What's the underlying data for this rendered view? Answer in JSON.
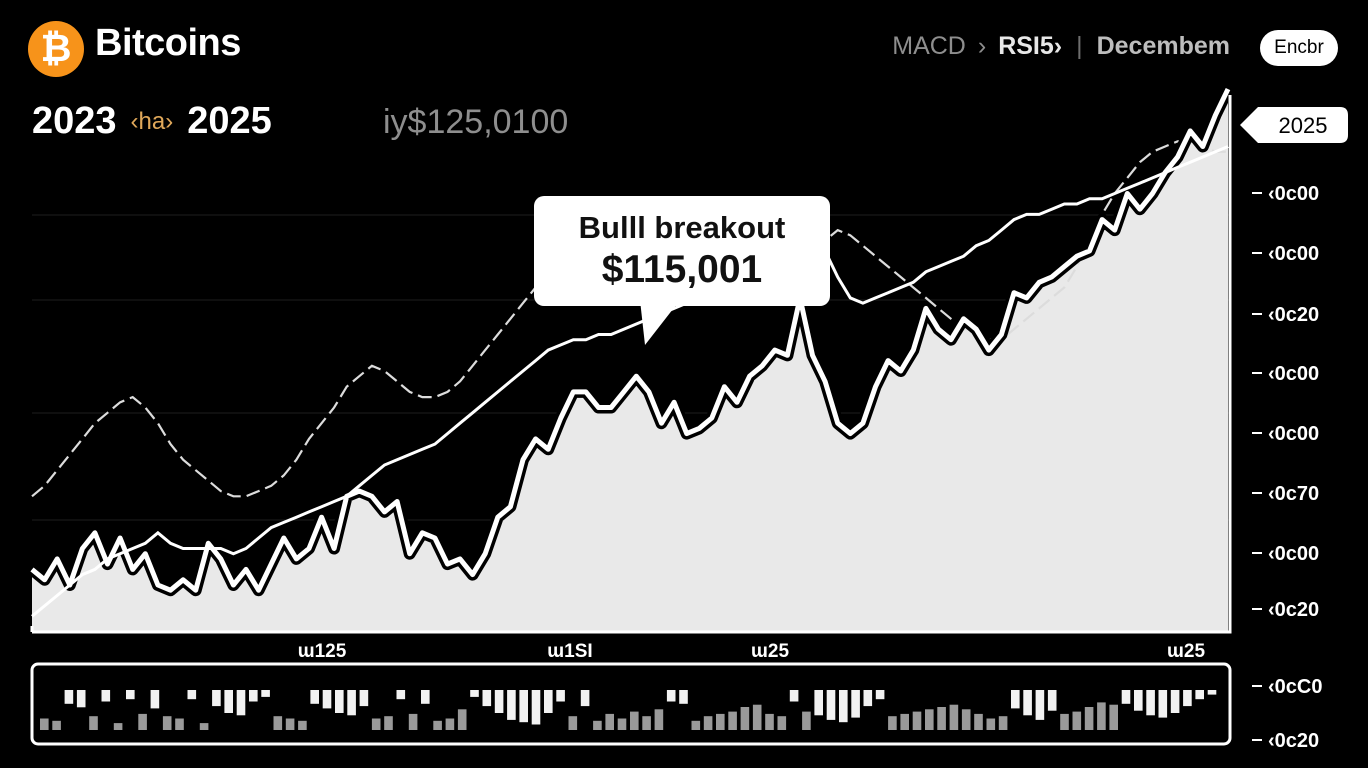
{
  "header": {
    "logo_glyph": "₿",
    "logo_color": "#F7931A",
    "brand": "Bitcoins",
    "nav": {
      "macd": "MACD",
      "chevron": "›",
      "rsi": "RSI5›",
      "divider": "|",
      "month": "Decembem"
    },
    "pill": "Encbr"
  },
  "range": {
    "start": "2023",
    "tag": "‹ha›",
    "end": "2025"
  },
  "price": "iy$125,0100",
  "callout": {
    "line1": "Bulll breakout",
    "line2": "$115,001"
  },
  "chart_data": {
    "type": "area",
    "title": "",
    "ylabel": "",
    "xlabel": "",
    "x_ticks": [
      "ɯ125",
      "ɯ1SI",
      "ɯ25",
      "ɯ25"
    ],
    "y_ticks": [
      "‹0ᴄ00",
      "‹0ᴄ00",
      "‹0ᴄ20",
      "‹0ᴄ00",
      "‹0ᴄ00",
      "‹0ᴄ70",
      "‹0ᴄ00",
      "‹0ᴄ20"
    ],
    "macd_ticks": [
      "‹0ᴄC0",
      "‹0ᴄ20"
    ],
    "end_tag": "2025",
    "ylim": [
      0,
      100
    ],
    "grid": true,
    "series": [
      {
        "values": [
          12,
          10,
          14,
          9,
          16,
          19,
          13,
          18,
          12,
          15,
          9,
          8,
          10,
          8,
          17,
          14,
          9,
          12,
          8,
          13,
          18,
          14,
          16,
          22,
          16,
          26,
          27,
          26,
          23,
          25,
          15,
          19,
          18,
          13,
          14,
          11,
          15,
          22,
          24,
          33,
          37,
          35,
          41,
          46,
          46,
          43,
          43,
          46,
          49,
          46,
          40,
          44,
          38,
          39,
          41,
          47,
          44,
          49,
          51,
          54,
          53,
          64,
          53,
          48,
          40,
          38,
          40,
          47,
          52,
          50,
          54,
          62,
          58,
          56,
          60,
          58,
          54,
          57,
          65,
          64,
          67,
          68,
          70,
          72,
          73,
          79,
          77,
          84,
          81,
          84,
          88,
          91,
          96,
          93,
          99,
          104
        ]
      },
      {
        "values": [
          3,
          5,
          7,
          9,
          11,
          12,
          14,
          15,
          16,
          17,
          19,
          17,
          16,
          16,
          16,
          16,
          15,
          16,
          18,
          20,
          21,
          22,
          23,
          24,
          25,
          26,
          28,
          30,
          32,
          33,
          34,
          35,
          36,
          38,
          40,
          42,
          44,
          46,
          48,
          50,
          52,
          54,
          55,
          56,
          56,
          57,
          57,
          58,
          59,
          60,
          61,
          62,
          63,
          64,
          65,
          66,
          66,
          67,
          68,
          69,
          70,
          71,
          72,
          73,
          68,
          64,
          63,
          64,
          65,
          66,
          67,
          69,
          70,
          71,
          72,
          74,
          75,
          77,
          79,
          80,
          80,
          81,
          82,
          82,
          83,
          83,
          84,
          85,
          86,
          87,
          88,
          89,
          90,
          91,
          92,
          93
        ]
      },
      {
        "values": [
          26,
          28,
          31,
          34,
          37,
          40,
          42,
          44,
          45,
          43,
          40,
          36,
          33,
          31,
          29,
          27,
          26,
          26,
          27,
          28,
          30,
          33,
          37,
          40,
          43,
          47,
          49,
          51,
          50,
          48,
          46,
          45,
          45,
          46,
          48,
          51,
          54,
          57,
          60,
          63,
          66,
          69,
          70,
          72,
          73,
          74,
          75,
          76,
          77,
          78,
          78,
          77,
          77,
          77,
          76,
          75,
          74,
          72,
          71,
          70,
          72,
          73,
          74,
          75,
          77,
          76,
          74,
          72,
          70,
          68,
          66,
          64,
          62,
          60,
          58,
          58,
          56,
          56,
          58,
          60,
          62,
          64,
          66,
          70,
          75,
          80,
          84,
          87,
          90,
          92,
          93,
          94,
          94,
          93,
          92,
          92
        ]
      }
    ],
    "macd": {
      "values": [
        10,
        8,
        -12,
        -15,
        12,
        -10,
        6,
        -8,
        14,
        -16,
        12,
        10,
        -8,
        6,
        -14,
        -20,
        -22,
        -10,
        -6,
        12,
        10,
        8,
        -12,
        -16,
        -20,
        -22,
        -14,
        10,
        12,
        -8,
        14,
        -12,
        8,
        10,
        18,
        -6,
        -14,
        -20,
        -26,
        -28,
        -30,
        -20,
        -10,
        12,
        -14,
        8,
        14,
        10,
        16,
        12,
        18,
        -10,
        -12,
        8,
        12,
        14,
        16,
        20,
        22,
        14,
        12,
        -10,
        16,
        -22,
        -26,
        -28,
        -24,
        -14,
        -8,
        12,
        14,
        16,
        18,
        20,
        22,
        18,
        14,
        10,
        12,
        -16,
        -22,
        -26,
        -18,
        14,
        16,
        20,
        24,
        22,
        -12,
        -18,
        -22,
        -24,
        -20,
        -14,
        -8,
        -4
      ]
    }
  }
}
